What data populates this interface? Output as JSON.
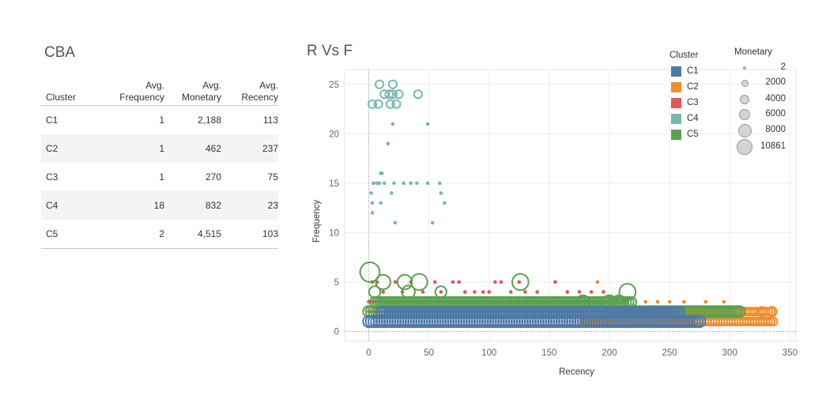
{
  "dashboard": {
    "table_title": "CBA",
    "chart_title": "R Vs F"
  },
  "table": {
    "headers": [
      "Cluster",
      "Avg.\nFrequency",
      "Avg.\nMonetary",
      "Avg.\nRecency"
    ],
    "rows": [
      [
        "C1",
        "1",
        "2,188",
        "113"
      ],
      [
        "C2",
        "1",
        "462",
        "237"
      ],
      [
        "C3",
        "1",
        "270",
        "75"
      ],
      [
        "C4",
        "18",
        "832",
        "23"
      ],
      [
        "C5",
        "2",
        "4,515",
        "103"
      ]
    ]
  },
  "legend": {
    "cluster_title": "Cluster",
    "clusters": [
      {
        "label": "C1",
        "color": "#4e79a7"
      },
      {
        "label": "C2",
        "color": "#f28e2b"
      },
      {
        "label": "C3",
        "color": "#e15759"
      },
      {
        "label": "C4",
        "color": "#76b7b2"
      },
      {
        "label": "C5",
        "color": "#59a14f"
      }
    ],
    "monetary_title": "Monetary",
    "monetary_sizes": [
      "2",
      "2000",
      "4000",
      "6000",
      "8000",
      "10861"
    ]
  },
  "chart_data": {
    "type": "scatter",
    "title": "R Vs F",
    "xlabel": "Recency",
    "ylabel": "Frequency",
    "xlim": [
      -20,
      355
    ],
    "ylim": [
      -1,
      26.5
    ],
    "xticks": [
      0,
      50,
      100,
      150,
      200,
      250,
      300,
      350
    ],
    "yticks": [
      0,
      5,
      10,
      15,
      20,
      25
    ],
    "grid": true,
    "legend_position": "top-right",
    "series": [
      {
        "name": "C1",
        "color": "#4e79a7",
        "bands": [
          {
            "y": 1,
            "x_from": 0,
            "x_to": 275,
            "size": 3
          },
          {
            "y": 2,
            "x_from": 10,
            "x_to": 260,
            "size": 2
          }
        ]
      },
      {
        "name": "C2",
        "color": "#f28e2b",
        "bands": [
          {
            "y": 1,
            "x_from": 180,
            "x_to": 337,
            "size": 1
          },
          {
            "y": 2,
            "x_from": 200,
            "x_to": 335,
            "size": 1
          }
        ],
        "points": [
          [
            190,
            5,
            0
          ],
          [
            195,
            4,
            0
          ],
          [
            230,
            3,
            0
          ],
          [
            240,
            3,
            0
          ],
          [
            250,
            3,
            0
          ],
          [
            262,
            3,
            0
          ],
          [
            300,
            2,
            2
          ],
          [
            310,
            2,
            1
          ],
          [
            327,
            2,
            2
          ],
          [
            335,
            2,
            2
          ],
          [
            280,
            3,
            0
          ],
          [
            295,
            3,
            0
          ]
        ]
      },
      {
        "name": "C3",
        "color": "#e15759",
        "bands": [
          {
            "y": 2,
            "x_from": 0,
            "x_to": 200,
            "size": 0
          },
          {
            "y": 3,
            "x_from": 0,
            "x_to": 195,
            "size": 0
          }
        ],
        "points": [
          [
            3,
            5,
            0
          ],
          [
            7,
            5,
            0
          ],
          [
            12,
            4,
            0
          ],
          [
            22,
            5,
            0
          ],
          [
            28,
            4,
            0
          ],
          [
            35,
            5,
            0
          ],
          [
            45,
            4,
            0
          ],
          [
            55,
            5,
            0
          ],
          [
            60,
            4,
            0
          ],
          [
            70,
            5,
            0
          ],
          [
            75,
            5,
            0
          ],
          [
            80,
            4,
            0
          ],
          [
            88,
            4,
            0
          ],
          [
            95,
            4,
            0
          ],
          [
            100,
            4,
            0
          ],
          [
            105,
            5,
            0
          ],
          [
            110,
            5,
            0
          ],
          [
            118,
            4,
            0
          ],
          [
            125,
            5,
            0
          ],
          [
            130,
            4,
            0
          ],
          [
            140,
            4,
            0
          ],
          [
            155,
            5,
            0
          ],
          [
            165,
            4,
            0
          ],
          [
            175,
            4,
            0
          ],
          [
            185,
            4,
            0
          ],
          [
            195,
            4,
            0
          ]
        ]
      },
      {
        "name": "C4",
        "color": "#76b7b2",
        "bands": [],
        "points": [
          [
            9,
            25,
            1
          ],
          [
            20,
            25,
            1
          ],
          [
            3,
            23,
            1
          ],
          [
            8,
            23,
            1
          ],
          [
            18,
            23,
            1
          ],
          [
            23,
            23,
            1
          ],
          [
            13,
            24,
            1
          ],
          [
            17,
            24,
            1
          ],
          [
            20,
            24,
            1
          ],
          [
            25,
            24,
            1
          ],
          [
            41,
            24,
            1
          ],
          [
            20,
            21,
            0
          ],
          [
            49,
            21,
            0
          ],
          [
            16,
            19,
            0
          ],
          [
            10,
            16,
            0
          ],
          [
            11,
            16,
            0
          ],
          [
            2,
            14,
            0
          ],
          [
            4,
            15,
            0
          ],
          [
            7,
            15,
            0
          ],
          [
            9,
            15,
            0
          ],
          [
            13,
            15,
            0
          ],
          [
            21,
            15,
            0
          ],
          [
            29,
            15,
            0
          ],
          [
            35,
            15,
            0
          ],
          [
            40,
            15,
            0
          ],
          [
            49,
            15,
            0
          ],
          [
            59,
            15,
            0
          ],
          [
            19,
            14,
            0
          ],
          [
            60,
            14,
            0
          ],
          [
            63,
            13,
            0
          ],
          [
            3,
            13,
            0
          ],
          [
            10,
            13,
            0
          ],
          [
            3,
            12,
            0
          ],
          [
            22,
            11,
            0
          ],
          [
            53,
            11,
            0
          ]
        ]
      },
      {
        "name": "C5",
        "color": "#59a14f",
        "bands": [
          {
            "y": 2,
            "x_from": 0,
            "x_to": 310,
            "size": 3
          },
          {
            "y": 3,
            "x_from": 5,
            "x_to": 220,
            "size": 2
          }
        ],
        "points": [
          [
            1,
            6,
            8
          ],
          [
            12,
            5,
            5
          ],
          [
            30,
            5,
            5
          ],
          [
            42,
            5,
            6
          ],
          [
            126,
            5,
            6
          ],
          [
            5,
            4,
            3
          ],
          [
            215,
            4,
            6
          ],
          [
            33,
            4,
            4
          ],
          [
            60,
            4,
            3
          ],
          [
            178,
            3,
            4
          ],
          [
            200,
            3,
            4
          ],
          [
            208,
            3,
            4
          ]
        ]
      }
    ]
  }
}
